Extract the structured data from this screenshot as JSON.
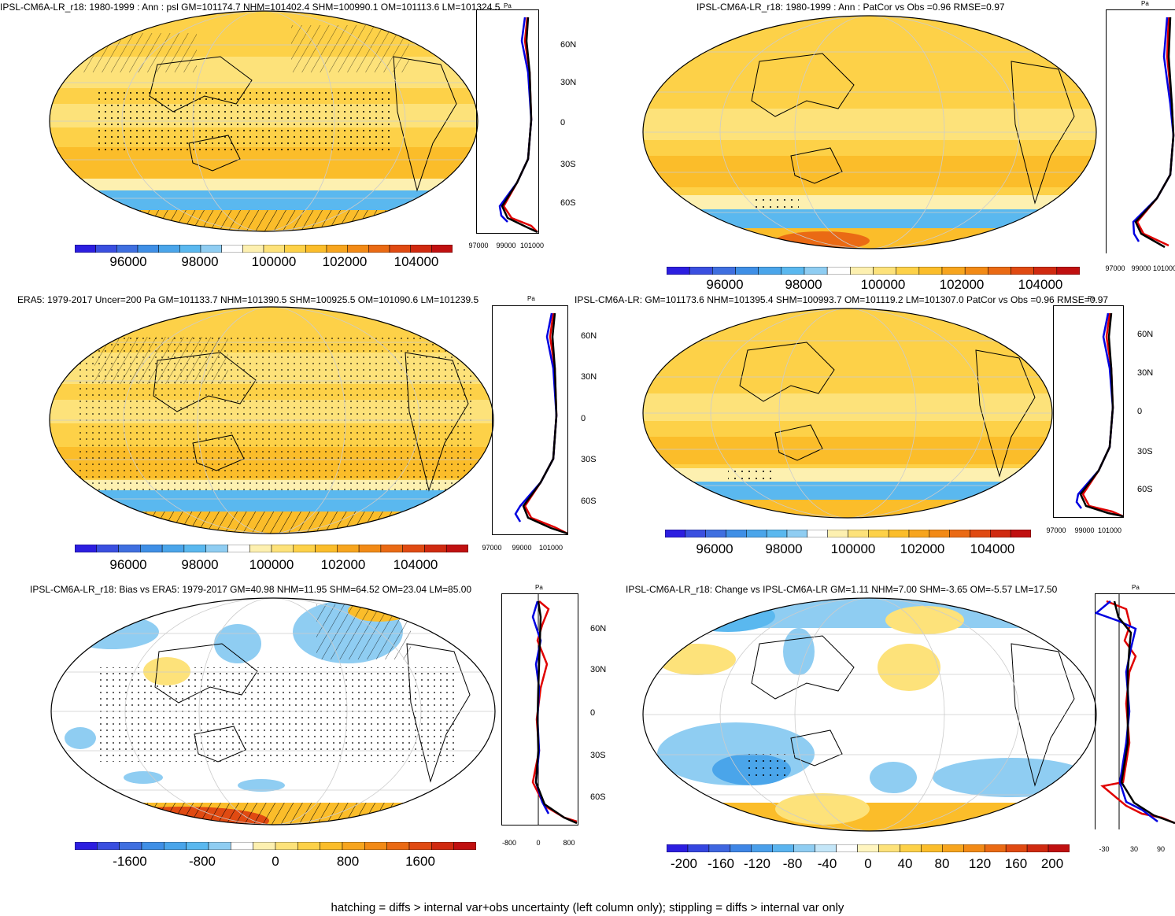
{
  "panels": [
    {
      "title": "IPSL-CM6A-LR_r18: 1980-1999 : Ann : psl GM=101174.7 NHM=101402.4 SHM=100990.1 OM=101113.6 LM=101324.5",
      "colorbar_labels": [
        "96000",
        "98000",
        "100000",
        "102000",
        "104000"
      ],
      "profile_xticks": [
        "97000",
        "99000",
        "101000"
      ],
      "lat_labels": [
        "60N",
        "30N",
        "0",
        "30S",
        "60S"
      ],
      "units": "Pa"
    },
    {
      "title": "IPSL-CM6A-LR_r18: 1980-1999 : Ann : PatCor vs Obs =0.96 RMSE=0.97",
      "colorbar_labels": [
        "96000",
        "98000",
        "100000",
        "102000",
        "104000"
      ],
      "profile_xticks": [
        "97000",
        "99000",
        "101000"
      ],
      "units": "Pa"
    },
    {
      "title": "ERA5: 1979-2017 Uncer=200 Pa GM=101133.7 NHM=101390.5 SHM=100925.5 OM=101090.6 LM=101239.5",
      "colorbar_labels": [
        "96000",
        "98000",
        "100000",
        "102000",
        "104000"
      ],
      "profile_xticks": [
        "97000",
        "99000",
        "101000"
      ],
      "lat_labels": [
        "60N",
        "30N",
        "0",
        "30S",
        "60S"
      ],
      "units": "Pa"
    },
    {
      "title": "IPSL-CM6A-LR: GM=101173.6 NHM=101395.4 SHM=100993.7 OM=101119.2 LM=101307.0 PatCor vs Obs =0.96 RMSE=0.97",
      "colorbar_labels": [
        "96000",
        "98000",
        "100000",
        "102000",
        "104000"
      ],
      "profile_xticks": [
        "97000",
        "99000",
        "101000"
      ],
      "lat_labels": [
        "60N",
        "30N",
        "0",
        "30S",
        "60S"
      ],
      "units": "Pa"
    },
    {
      "title": "IPSL-CM6A-LR_r18: Bias vs ERA5: 1979-2017 GM=40.98 NHM=11.95 SHM=64.52 OM=23.04 LM=85.00",
      "colorbar_labels": [
        "-1600",
        "-800",
        "0",
        "800",
        "1600"
      ],
      "profile_xticks": [
        "-800",
        "0",
        "800"
      ],
      "lat_labels": [
        "60N",
        "30N",
        "0",
        "30S",
        "60S"
      ],
      "units": "Pa"
    },
    {
      "title": "IPSL-CM6A-LR_r18: Change vs IPSL-CM6A-LR GM=1.11 NHM=7.00 SHM=-3.65 OM=-5.57 LM=17.50",
      "colorbar_labels": [
        "-200",
        "-160",
        "-120",
        "-80",
        "-40",
        "0",
        "40",
        "80",
        "120",
        "160",
        "200"
      ],
      "profile_xticks": [
        "-30",
        "30",
        "90"
      ],
      "units": "Pa"
    }
  ],
  "footer": "hatching = diffs > internal var+obs uncertainty (left column only); stippling = diffs > internal var only",
  "colors": {
    "abs_scale": [
      "#2c1ee0",
      "#3a4fe0",
      "#3f6fe0",
      "#3f8fe6",
      "#4aa5ea",
      "#5ab8ef",
      "#8fcdf2",
      "#ffffff",
      "#fdf0b0",
      "#fde27a",
      "#fdd148",
      "#fbbd2a",
      "#f7a51e",
      "#f28a16",
      "#ea6a14",
      "#e04a12",
      "#d02a10",
      "#c01010"
    ],
    "diff_scale": [
      "#2c1ee0",
      "#3546e0",
      "#3f66e0",
      "#3f86e6",
      "#4a9fea",
      "#5ab4ef",
      "#8fcdf2",
      "#c4e6f8",
      "#ffffff",
      "#fff5c0",
      "#fde27a",
      "#fdd148",
      "#fbbd2a",
      "#f7a51e",
      "#f28a16",
      "#ea6a14",
      "#e04a12",
      "#d02a10",
      "#c01010"
    ],
    "model_line": "#e00000",
    "obs_line": "#0000e0",
    "mean_line": "#000000"
  }
}
